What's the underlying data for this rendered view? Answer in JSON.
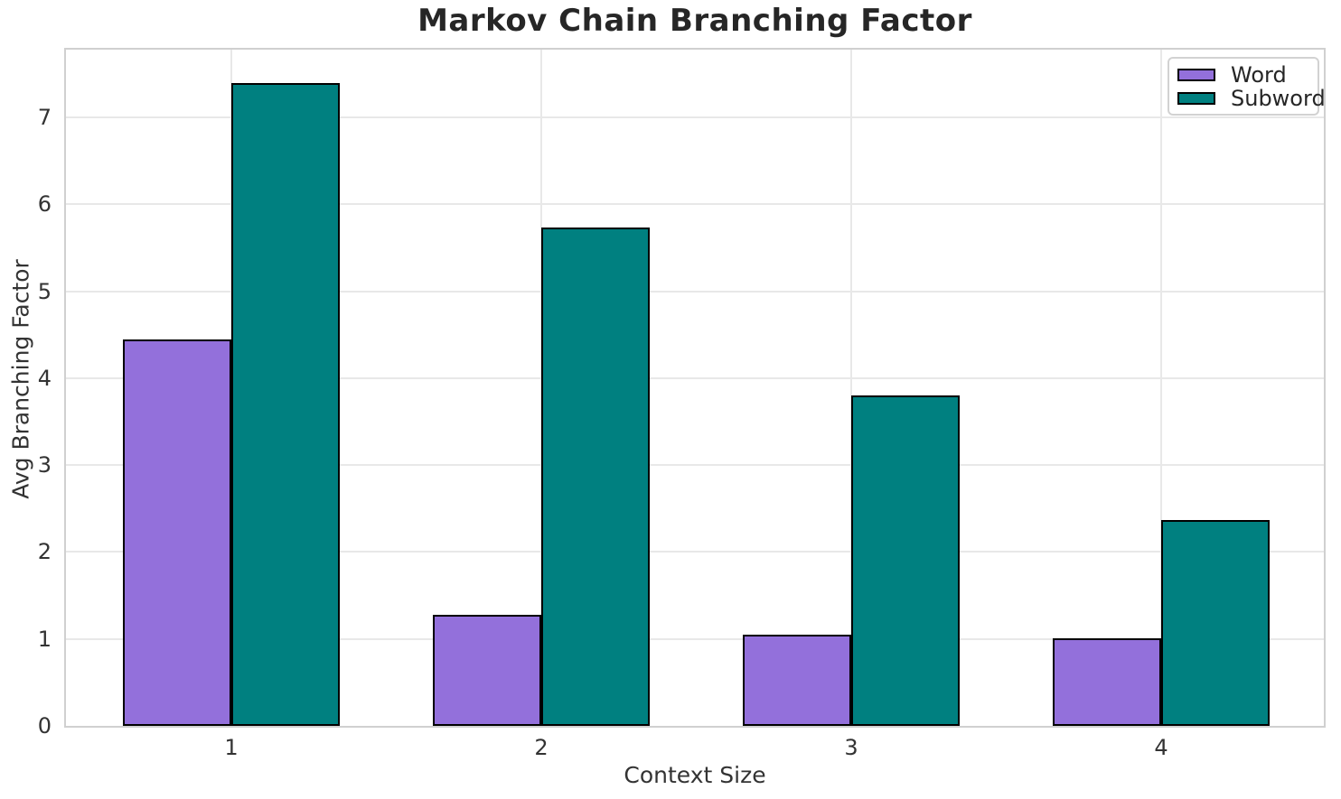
{
  "chart_data": {
    "type": "bar",
    "title": "Markov Chain Branching Factor",
    "xlabel": "Context Size",
    "ylabel": "Avg Branching Factor",
    "categories": [
      "1",
      "2",
      "3",
      "4"
    ],
    "series": [
      {
        "name": "Word",
        "color": "#9370DB",
        "values": [
          4.45,
          1.28,
          1.05,
          1.01
        ]
      },
      {
        "name": "Subword",
        "color": "#008080",
        "values": [
          7.4,
          5.73,
          3.8,
          2.37
        ]
      }
    ],
    "ylim": [
      0,
      7.78
    ],
    "yticks": [
      0,
      1,
      2,
      3,
      4,
      5,
      6,
      7
    ],
    "grid": true,
    "legend_position": "upper right",
    "legend_labels": [
      "Word",
      "Subword"
    ],
    "colors": {
      "bar_edge": "#000000",
      "grid": "#e8e8e8",
      "axes_edge": "#d0d0d0",
      "title_text": "#262626",
      "tick_text": "#333333"
    }
  }
}
